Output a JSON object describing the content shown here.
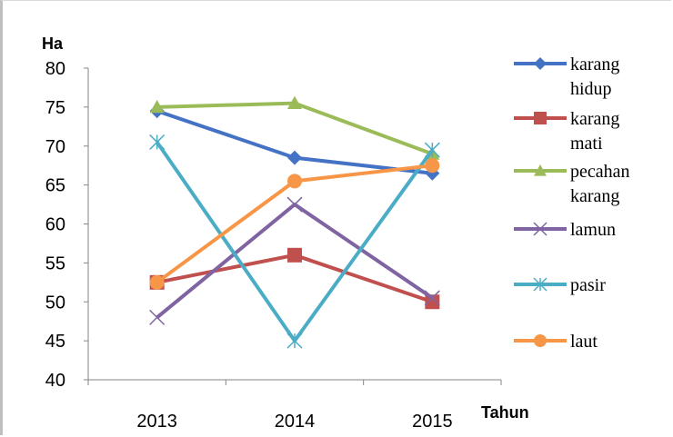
{
  "chart_data": {
    "type": "line",
    "title": "",
    "xlabel": "Tahun",
    "ylabel": "Ha",
    "categories": [
      "2013",
      "2014",
      "2015"
    ],
    "ylim": [
      40,
      80
    ],
    "yticks": [
      "80",
      "75",
      "70",
      "65",
      "60",
      "55",
      "50",
      "45",
      "40"
    ],
    "grid": false,
    "legend_position": "right",
    "series": [
      {
        "name": "karang hidup",
        "label_lines": [
          "karang",
          "hidup"
        ],
        "values": [
          74.5,
          68.5,
          66.5
        ],
        "color": "#4472c4",
        "marker": "diamond"
      },
      {
        "name": "karang mati",
        "label_lines": [
          "karang",
          "mati"
        ],
        "values": [
          52.5,
          56,
          50
        ],
        "color": "#c0504d",
        "marker": "square"
      },
      {
        "name": "pecahan karang",
        "label_lines": [
          "pecahan",
          "karang"
        ],
        "values": [
          75,
          75.5,
          69
        ],
        "color": "#9bbb59",
        "marker": "triangle"
      },
      {
        "name": "lamun",
        "label_lines": [
          "lamun"
        ],
        "values": [
          48,
          62.5,
          50.5
        ],
        "color": "#8064a2",
        "marker": "x"
      },
      {
        "name": "pasir",
        "label_lines": [
          "pasir"
        ],
        "values": [
          70.5,
          45,
          69.5
        ],
        "color": "#4bacc6",
        "marker": "star"
      },
      {
        "name": "laut",
        "label_lines": [
          "laut"
        ],
        "values": [
          52.5,
          65.5,
          67.5
        ],
        "color": "#f79646",
        "marker": "circle"
      }
    ]
  }
}
